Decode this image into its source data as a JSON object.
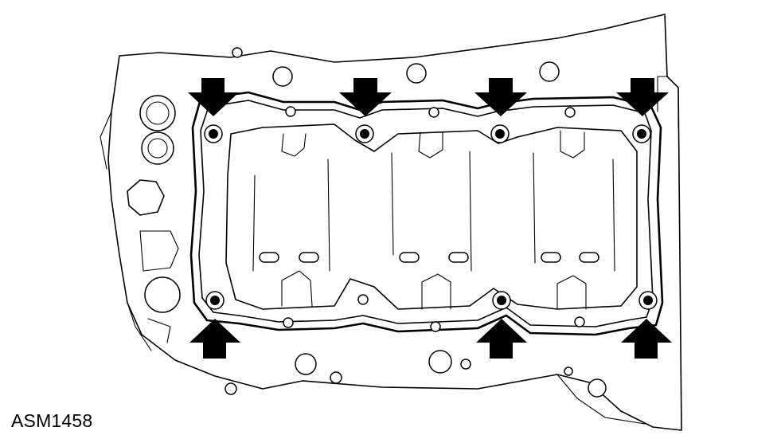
{
  "diagram": {
    "reference_code": "ASM1458"
  }
}
